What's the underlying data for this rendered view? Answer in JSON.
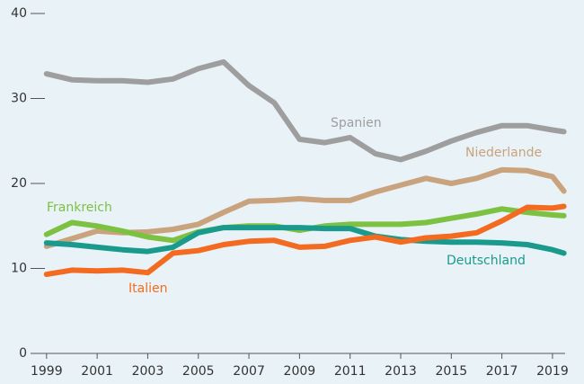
{
  "chart_data": {
    "type": "line",
    "x": [
      1999,
      2000,
      2001,
      2002,
      2003,
      2004,
      2005,
      2006,
      2007,
      2008,
      2009,
      2010,
      2011,
      2012,
      2013,
      2014,
      2015,
      2016,
      2017,
      2018,
      2019,
      2019.45
    ],
    "series": [
      {
        "name": "Spanien",
        "color": "#9e9e9e",
        "values": [
          32.9,
          32.2,
          32.1,
          32.1,
          31.9,
          32.3,
          33.5,
          34.3,
          31.5,
          29.5,
          25.2,
          24.8,
          25.4,
          23.5,
          22.8,
          23.8,
          25.0,
          26.0,
          26.8,
          26.8,
          26.3,
          26.1
        ]
      },
      {
        "name": "Niederlande",
        "color": "#c9a27e",
        "values": [
          12.6,
          13.5,
          14.4,
          14.2,
          14.3,
          14.6,
          15.2,
          16.6,
          17.9,
          18.0,
          18.2,
          18.0,
          18.0,
          19.0,
          19.8,
          20.6,
          20.0,
          20.6,
          21.6,
          21.5,
          20.8,
          19.1
        ]
      },
      {
        "name": "Frankreich",
        "color": "#7dc142",
        "values": [
          14.0,
          15.4,
          15.0,
          14.4,
          13.7,
          13.3,
          14.3,
          14.8,
          15.0,
          15.0,
          14.5,
          15.0,
          15.2,
          15.2,
          15.2,
          15.4,
          15.9,
          16.4,
          17.0,
          16.6,
          16.3,
          16.2
        ]
      },
      {
        "name": "Deutschland",
        "color": "#1a9a8c",
        "values": [
          13.0,
          12.8,
          12.5,
          12.2,
          12.0,
          12.5,
          14.2,
          14.8,
          14.8,
          14.8,
          14.8,
          14.7,
          14.7,
          13.8,
          13.4,
          13.2,
          13.1,
          13.1,
          13.0,
          12.8,
          12.2,
          11.8
        ]
      },
      {
        "name": "Italien",
        "color": "#f26b21",
        "values": [
          9.3,
          9.8,
          9.7,
          9.8,
          9.5,
          11.8,
          12.1,
          12.8,
          13.2,
          13.3,
          12.5,
          12.6,
          13.3,
          13.7,
          13.1,
          13.6,
          13.8,
          14.2,
          15.6,
          17.2,
          17.1,
          17.3
        ]
      }
    ],
    "xlim": [
      1998.9,
      2019.5
    ],
    "xticks": [
      1999,
      2001,
      2003,
      2005,
      2007,
      2009,
      2011,
      2013,
      2015,
      2017,
      2019
    ],
    "ylim": [
      0,
      40
    ],
    "yticks": [
      0,
      10,
      20,
      30,
      40
    ]
  }
}
